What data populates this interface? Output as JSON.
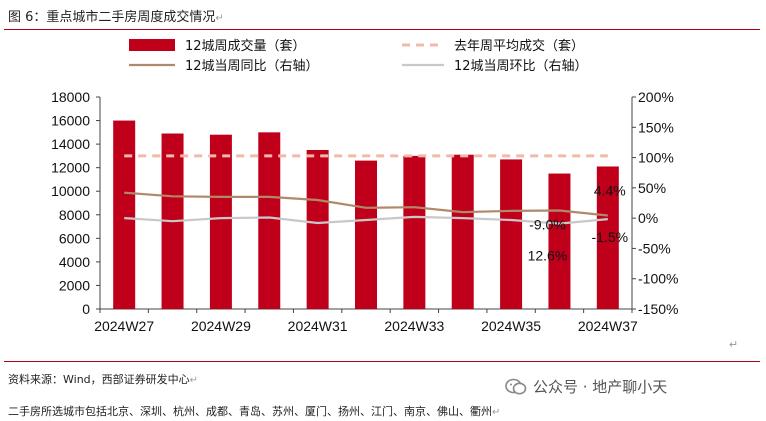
{
  "header": {
    "title": "图 6：重点城市二手房周度成交情况",
    "title_mark": "↵"
  },
  "chart_data": {
    "type": "bar",
    "categories": [
      "2024W27",
      "2024W28",
      "2024W29",
      "2024W30",
      "2024W31",
      "2024W32",
      "2024W33",
      "2024W34",
      "2024W35",
      "2024W36",
      "2024W37"
    ],
    "x_tick_labels": [
      "2024W27",
      "2024W29",
      "2024W31",
      "2024W33",
      "2024W35",
      "2024W37"
    ],
    "series": [
      {
        "name": "12城周成交量（套）",
        "type": "bar",
        "axis": "left",
        "color": "#c0001a",
        "values": [
          16000,
          14900,
          14800,
          15000,
          13500,
          12600,
          13000,
          13100,
          12700,
          11500,
          12100
        ]
      },
      {
        "name": "去年周平均成交（套）",
        "type": "line-dashed",
        "axis": "left",
        "color": "#f2b8ac",
        "values": [
          13000,
          13000,
          13000,
          13000,
          13000,
          13000,
          13000,
          13000,
          13000,
          13000,
          13000
        ]
      },
      {
        "name": "12城当周同比（右轴）",
        "type": "line",
        "axis": "right",
        "color": "#b0896a",
        "values": [
          0.42,
          0.36,
          0.35,
          0.35,
          0.3,
          0.17,
          0.18,
          0.1,
          0.12,
          0.126,
          0.044
        ]
      },
      {
        "name": "12城当周环比（右轴）",
        "type": "line",
        "axis": "right",
        "color": "#c8c8c8",
        "values": [
          0.0,
          -0.05,
          0.0,
          0.01,
          -0.08,
          -0.03,
          0.02,
          0.0,
          -0.03,
          -0.09,
          -0.015
        ]
      }
    ],
    "left_axis": {
      "ylim": [
        0,
        18000
      ],
      "ticks": [
        "0",
        "2000",
        "4000",
        "6000",
        "8000",
        "10000",
        "12000",
        "14000",
        "16000",
        "18000"
      ]
    },
    "right_axis": {
      "ylim": [
        -1.5,
        2.0
      ],
      "ticks": [
        "-150%",
        "-100%",
        "-50%",
        "0%",
        "50%",
        "100%",
        "150%",
        "200%"
      ]
    },
    "annotations": [
      "-9.0%",
      "4.4%",
      "12.6%",
      "-1.5%"
    ],
    "legend_position": "top",
    "grid": false
  },
  "footer": {
    "source": "资料来源：Wind，西部证券研发中心",
    "source_mark": "↵",
    "watermark": "公众号 · 地产聊小天",
    "note": "二手房所选城市包括北京、深圳、杭州、成都、青岛、苏州、厦门、扬州、江门、南京、佛山、衢州",
    "note_mark": "↵",
    "chart_mark": "↵"
  }
}
